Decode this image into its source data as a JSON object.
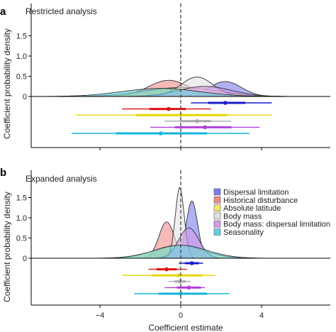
{
  "figure": {
    "ylabel": "Coefficient probability density",
    "xlabel": "Coefficient estimate"
  },
  "legend": [
    {
      "name": "Dispersal limitation",
      "color": "#7b7bea"
    },
    {
      "name": "Historical disturbance",
      "color": "#ee8c8c"
    },
    {
      "name": "Absolute latitude",
      "color": "#f2e86a"
    },
    {
      "name": "Body mass",
      "color": "#e2e2e2"
    },
    {
      "name": "Body mass: dispersal limitation",
      "color": "#d49ae8"
    },
    {
      "name": "Seasonality",
      "color": "#5fd0e4"
    }
  ],
  "chart_data": [
    {
      "type": "area",
      "panel": "a",
      "title": "Restricted analysis",
      "xlabel": "",
      "ylabel": "Coefficient probability density",
      "xlim": [
        -7.4,
        7.4
      ],
      "ylim": [
        0,
        1.9
      ],
      "xticks": [
        -4,
        0,
        4
      ],
      "xtick_labels": [
        "−4",
        "0",
        "4"
      ],
      "yticks": [
        0,
        0.5,
        1.0,
        1.5
      ],
      "ytick_labels": [
        "0",
        "0.5",
        "1.0",
        "1.5"
      ],
      "reference_line": 0,
      "series": [
        {
          "name": "Dispersal limitation",
          "color": "#7b7bea",
          "line_color": "#1a1acc",
          "density": {
            "mean": 2.2,
            "sd": 0.8,
            "peak": 0.37
          },
          "estimate": 2.2,
          "ci_inner": [
            1.35,
            3.2
          ],
          "ci_outer": [
            0.5,
            4.5
          ]
        },
        {
          "name": "Historical disturbance",
          "color": "#ee8c8c",
          "line_color": "#e01010",
          "density": {
            "mean": -0.6,
            "sd": 1.0,
            "peak": 0.4
          },
          "estimate": -0.6,
          "ci_inner": [
            -1.55,
            0.25
          ],
          "ci_outer": [
            -2.9,
            1.5
          ]
        },
        {
          "name": "Absolute latitude",
          "color": "#f2e86a",
          "line_color": "#e6d600",
          "density": {
            "mean": 0.0,
            "sd": 1.8,
            "peak": 0.22
          },
          "estimate": 0.0,
          "ci_inner": [
            -2.2,
            2.3
          ],
          "ci_outer": [
            -5.2,
            4.5
          ]
        },
        {
          "name": "Body mass",
          "color": "#e2e2e2",
          "line_color": "#a8a8a8",
          "density": {
            "mean": 0.8,
            "sd": 0.8,
            "peak": 0.48
          },
          "estimate": 0.8,
          "ci_inner": [
            0.0,
            1.5
          ],
          "ci_outer": [
            -0.8,
            2.5
          ]
        },
        {
          "name": "Body mass: dispersal limitation",
          "color": "#d49ae8",
          "line_color": "#b040d8",
          "density": {
            "mean": 1.2,
            "sd": 1.3,
            "peak": 0.25
          },
          "estimate": 1.2,
          "ci_inner": [
            -0.3,
            2.5
          ],
          "ci_outer": [
            -1.5,
            3.9
          ]
        },
        {
          "name": "Seasonality",
          "color": "#5fd0e4",
          "line_color": "#10b4dc",
          "density": {
            "mean": -1.0,
            "sd": 1.9,
            "peak": 0.2
          },
          "estimate": -1.0,
          "ci_inner": [
            -3.2,
            1.3
          ],
          "ci_outer": [
            -5.4,
            3.4
          ]
        }
      ]
    },
    {
      "type": "area",
      "panel": "b",
      "title": "Expanded analysis",
      "xlabel": "Coefficient estimate",
      "ylabel": "Coefficient probability density",
      "xlim": [
        -7.4,
        7.4
      ],
      "ylim": [
        0,
        1.9
      ],
      "xticks": [
        -4,
        0,
        4
      ],
      "xtick_labels": [
        "−4",
        "0",
        "4"
      ],
      "yticks": [
        0,
        0.5,
        1.0,
        1.5
      ],
      "ytick_labels": [
        "0",
        "0.5",
        "1.0",
        "1.5"
      ],
      "reference_line": 0,
      "series": [
        {
          "name": "Dispersal limitation",
          "color": "#7b7bea",
          "line_color": "#1a1acc",
          "density": {
            "mean": 0.55,
            "sd": 0.28,
            "peak": 1.42
          },
          "estimate": 0.55,
          "ci_inner": [
            0.2,
            0.9
          ],
          "ci_outer": [
            -0.1,
            1.1
          ]
        },
        {
          "name": "Historical disturbance",
          "color": "#ee8c8c",
          "line_color": "#e01010",
          "density": {
            "mean": -0.7,
            "sd": 0.38,
            "peak": 0.9
          },
          "estimate": -0.7,
          "ci_inner": [
            -1.2,
            -0.2
          ],
          "ci_outer": [
            -1.6,
            0.3
          ]
        },
        {
          "name": "Absolute latitude",
          "color": "#f2e86a",
          "line_color": "#e6d600",
          "density": {
            "mean": -0.1,
            "sd": 1.2,
            "peak": 0.32
          },
          "estimate": -0.1,
          "ci_inner": [
            -1.4,
            1.1
          ],
          "ci_outer": [
            -2.9,
            1.7
          ]
        },
        {
          "name": "Body mass",
          "color": "#e2e2e2",
          "line_color": "#a8a8a8",
          "density": {
            "mean": -0.05,
            "sd": 0.22,
            "peak": 1.75
          },
          "estimate": -0.05,
          "ci_inner": [
            -0.3,
            0.25
          ],
          "ci_outer": [
            -0.6,
            0.5
          ]
        },
        {
          "name": "Body mass: dispersal limitation",
          "color": "#d49ae8",
          "line_color": "#b040d8",
          "density": {
            "mean": 0.4,
            "sd": 0.5,
            "peak": 0.75
          },
          "estimate": 0.4,
          "ci_inner": [
            -0.2,
            1.0
          ],
          "ci_outer": [
            -0.8,
            1.2
          ]
        },
        {
          "name": "Seasonality",
          "color": "#5fd0e4",
          "line_color": "#10b4dc",
          "density": {
            "mean": 0.0,
            "sd": 1.3,
            "peak": 0.32
          },
          "estimate": 0.0,
          "ci_inner": [
            -1.1,
            1.3
          ],
          "ci_outer": [
            -2.3,
            2.4
          ]
        }
      ]
    }
  ]
}
